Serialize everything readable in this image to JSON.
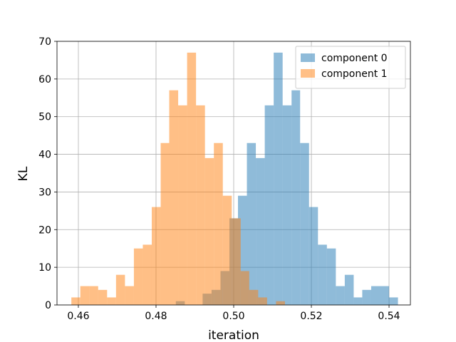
{
  "chart_data": {
    "type": "histogram",
    "title": "",
    "xlabel": "iteration",
    "ylabel": "KL",
    "xlim": [
      0.4545,
      0.5455
    ],
    "ylim": [
      0,
      70
    ],
    "xticks": [
      0.46,
      0.48,
      0.5,
      0.52,
      0.54
    ],
    "xtick_labels": [
      "0.46",
      "0.48",
      "0.50",
      "0.52",
      "0.54"
    ],
    "yticks": [
      0,
      10,
      20,
      30,
      40,
      50,
      60,
      70
    ],
    "ytick_labels": [
      "0",
      "10",
      "20",
      "30",
      "40",
      "50",
      "60",
      "70"
    ],
    "grid": true,
    "legend_position": "upper right",
    "series": [
      {
        "name": "component 0",
        "color": "#1f77b4",
        "alpha": 0.5,
        "bins": [
          [
            0.4851,
            0.4874,
            1
          ],
          [
            0.4898,
            0.492,
            0
          ],
          [
            0.492,
            0.4943,
            3
          ],
          [
            0.4943,
            0.4966,
            4
          ],
          [
            0.4966,
            0.4989,
            9
          ],
          [
            0.4989,
            0.5011,
            23
          ],
          [
            0.5011,
            0.5034,
            29
          ],
          [
            0.5034,
            0.5057,
            43
          ],
          [
            0.5057,
            0.508,
            39
          ],
          [
            0.508,
            0.5103,
            53
          ],
          [
            0.5103,
            0.5126,
            67
          ],
          [
            0.5126,
            0.5149,
            53
          ],
          [
            0.5149,
            0.5171,
            57
          ],
          [
            0.5171,
            0.5194,
            43
          ],
          [
            0.5194,
            0.5217,
            26
          ],
          [
            0.5217,
            0.524,
            16
          ],
          [
            0.524,
            0.5263,
            15
          ],
          [
            0.5263,
            0.5286,
            5
          ],
          [
            0.5286,
            0.5309,
            8
          ],
          [
            0.5309,
            0.5331,
            2
          ],
          [
            0.5331,
            0.5354,
            4
          ],
          [
            0.5354,
            0.5377,
            5
          ],
          [
            0.5377,
            0.54,
            5
          ],
          [
            0.54,
            0.5423,
            2
          ]
        ]
      },
      {
        "name": "component 1",
        "color": "#ff7f0e",
        "alpha": 0.5,
        "bins": [
          [
            0.4582,
            0.4605,
            2
          ],
          [
            0.4605,
            0.4628,
            5
          ],
          [
            0.4628,
            0.4651,
            5
          ],
          [
            0.4651,
            0.4674,
            4
          ],
          [
            0.4674,
            0.4697,
            2
          ],
          [
            0.4697,
            0.472,
            8
          ],
          [
            0.472,
            0.4743,
            5
          ],
          [
            0.4743,
            0.4766,
            15
          ],
          [
            0.4766,
            0.4789,
            16
          ],
          [
            0.4789,
            0.4812,
            26
          ],
          [
            0.4812,
            0.4834,
            43
          ],
          [
            0.4834,
            0.4857,
            57
          ],
          [
            0.4857,
            0.488,
            53
          ],
          [
            0.488,
            0.4903,
            67
          ],
          [
            0.4903,
            0.4926,
            53
          ],
          [
            0.4926,
            0.4949,
            39
          ],
          [
            0.4949,
            0.4972,
            43
          ],
          [
            0.4972,
            0.4995,
            29
          ],
          [
            0.4995,
            0.5018,
            23
          ],
          [
            0.5018,
            0.504,
            9
          ],
          [
            0.504,
            0.5063,
            4
          ],
          [
            0.5063,
            0.5086,
            2
          ],
          [
            0.5086,
            0.5109,
            0
          ],
          [
            0.5109,
            0.5132,
            1
          ]
        ]
      }
    ]
  }
}
